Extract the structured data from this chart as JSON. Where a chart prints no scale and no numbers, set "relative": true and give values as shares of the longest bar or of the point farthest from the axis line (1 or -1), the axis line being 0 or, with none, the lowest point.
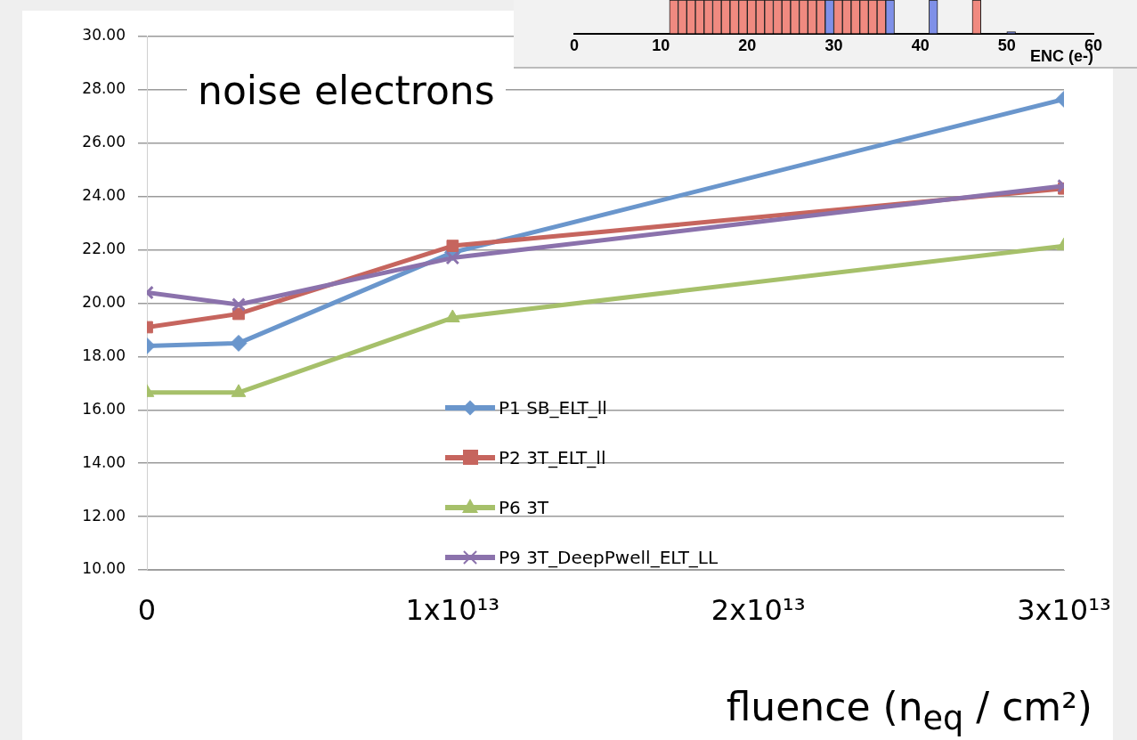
{
  "chart_data": [
    {
      "type": "line",
      "title": "noise electrons",
      "xlabel": "fluence (n$_{eq}$ / cm²)",
      "x": [
        0,
        3000000000000.0,
        10000000000000.0,
        30000000000000.0
      ],
      "series": [
        {
          "name": "P1 SB_ELT_ll",
          "color": "#6a96cc",
          "marker": "diamond",
          "values": [
            18.4,
            18.5,
            21.9,
            27.65
          ]
        },
        {
          "name": "P2 3T_ELT_ll",
          "color": "#c6655e",
          "marker": "square",
          "values": [
            19.1,
            19.6,
            22.15,
            24.3
          ]
        },
        {
          "name": "P6 3T",
          "color": "#a6c06a",
          "marker": "triangle",
          "values": [
            16.65,
            16.65,
            19.45,
            22.15
          ]
        },
        {
          "name": "P9 3T_DeepPwell_ELT_LL",
          "color": "#8b72ac",
          "marker": "cross",
          "values": [
            20.4,
            19.95,
            21.7,
            24.4
          ]
        }
      ],
      "xlim": [
        0,
        30000000000000.0
      ],
      "xticks": [
        0,
        {
          "value": 10000000000000.0,
          "label": "1x10¹³"
        },
        {
          "value": 20000000000000.0,
          "label": "2x10¹³"
        },
        {
          "value": 30000000000000.0,
          "label": "3x10¹³"
        }
      ],
      "ylim": [
        10,
        30
      ],
      "yticks": [
        {
          "value": 10,
          "label": "10.00"
        },
        {
          "value": 12,
          "label": "12.00"
        },
        {
          "value": 14,
          "label": "14.00"
        },
        {
          "value": 16,
          "label": "16.00"
        },
        {
          "value": 18,
          "label": "18.00"
        },
        {
          "value": 20,
          "label": "20.00"
        },
        {
          "value": 22,
          "label": "22.00"
        },
        {
          "value": 24,
          "label": "24.00"
        },
        {
          "value": 26,
          "label": "26.00"
        },
        {
          "value": 28,
          "label": "28.00"
        },
        {
          "value": 30,
          "label": "30.00"
        }
      ],
      "grid": "y",
      "legend": "center",
      "line_style": "solid"
    },
    {
      "type": "bar",
      "relative": true,
      "xlabel": "ENC (e-)",
      "xlim": [
        0,
        60
      ],
      "xticks": [
        0,
        10,
        20,
        30,
        40,
        50,
        60
      ],
      "x": [
        11.5,
        12.5,
        13.5,
        14.5,
        15.5,
        16.5,
        17.5,
        18.5,
        19.5,
        20.5,
        21.5,
        22.5,
        23.5,
        24.5,
        25.5,
        26.5,
        27.5,
        28.5,
        29.5,
        30.5,
        31.5,
        32.5,
        33.5,
        34.5,
        35.5,
        36.5,
        41.5,
        46.5,
        50.5
      ],
      "values": [
        1,
        1,
        1,
        1,
        1,
        1,
        1,
        1,
        1,
        1,
        1,
        1,
        1,
        1,
        1,
        1,
        1,
        1,
        1,
        1,
        1,
        1,
        1,
        1,
        1,
        1,
        1,
        1,
        0.05
      ],
      "colors": [
        "#f08a80",
        "#f08a80",
        "#f08a80",
        "#f08a80",
        "#f08a80",
        "#f08a80",
        "#f08a80",
        "#f08a80",
        "#f08a80",
        "#f08a80",
        "#f08a80",
        "#f08a80",
        "#f08a80",
        "#f08a80",
        "#f08a80",
        "#f08a80",
        "#f08a80",
        "#f08a80",
        "#7f90e8",
        "#f08a80",
        "#f08a80",
        "#f08a80",
        "#f08a80",
        "#f08a80",
        "#f08a80",
        "#7f90e8",
        "#7f90e8",
        "#f08a80",
        "#7f90e8"
      ]
    }
  ]
}
